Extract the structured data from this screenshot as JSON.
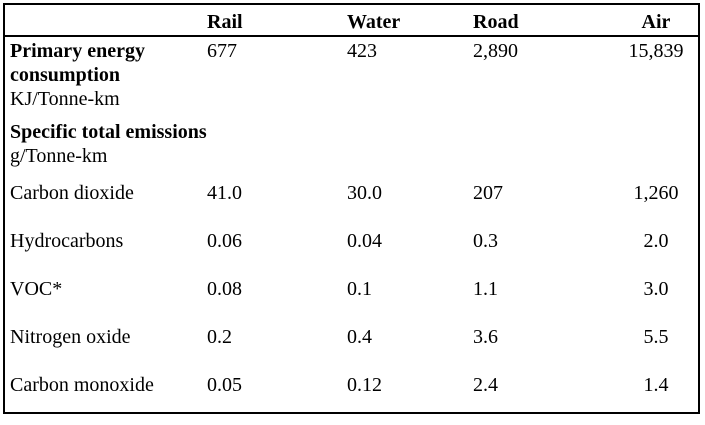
{
  "table": {
    "colors": {
      "text": "#000000",
      "border": "#000000",
      "background": "#ffffff"
    },
    "columns": [
      "",
      "Rail",
      "Water",
      "Road",
      "Air"
    ],
    "rows": [
      {
        "type": "data",
        "label_bold": "Primary energy consumption",
        "label_unit": "KJ/Tonne-km",
        "values": [
          "677",
          "423",
          "2,890",
          "15,839"
        ]
      },
      {
        "type": "section",
        "title": "Specific total emissions",
        "subtitle": "g/Tonne-km"
      },
      {
        "type": "data",
        "label": "Carbon dioxide",
        "values": [
          "41.0",
          "30.0",
          "207",
          "1,260"
        ]
      },
      {
        "type": "data",
        "label": "Hydrocarbons",
        "values": [
          "0.06",
          "0.04",
          "0.3",
          "2.0"
        ]
      },
      {
        "type": "data",
        "label": "VOC*",
        "values": [
          "0.08",
          "0.1",
          "1.1",
          "3.0"
        ]
      },
      {
        "type": "data",
        "label": "Nitrogen oxide",
        "values": [
          "0.2",
          "0.4",
          "3.6",
          "5.5"
        ]
      },
      {
        "type": "data",
        "label": "Carbon monoxide",
        "values": [
          "0.05",
          "0.12",
          "2.4",
          "1.4"
        ]
      }
    ]
  }
}
